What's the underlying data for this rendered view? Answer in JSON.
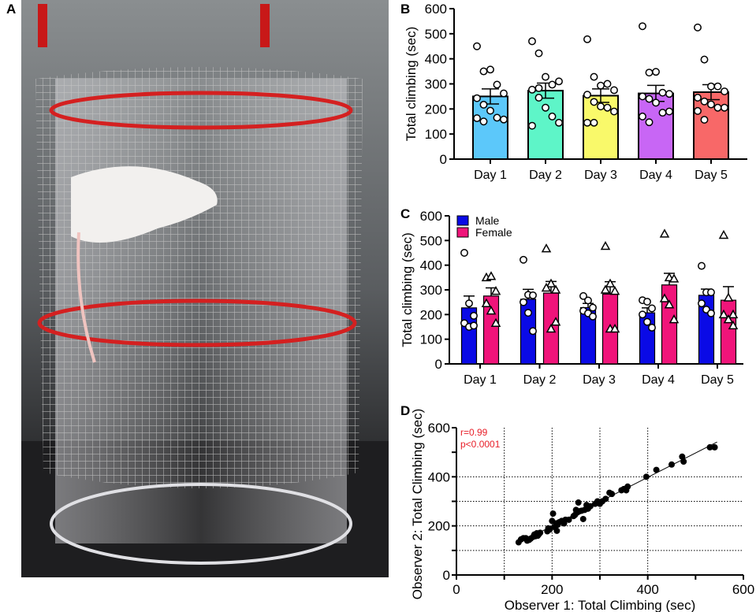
{
  "panels": {
    "a": "A",
    "b": "B",
    "c": "C",
    "d": "D"
  },
  "photo": {
    "description_icon": "rat-in-wire-mesh-cylinder-photo"
  },
  "chart_data": [
    {
      "id": "B",
      "type": "bar",
      "categories": [
        "Day 1",
        "Day 2",
        "Day 3",
        "Day 4",
        "Day 5"
      ],
      "ylabel": "Total climbing (sec)",
      "xlabel": "",
      "ylim": [
        0,
        600
      ],
      "yticks": [
        0,
        100,
        200,
        300,
        400,
        500,
        600
      ],
      "colors": [
        "#5cc8fa",
        "#5ef5c8",
        "#f9f96a",
        "#c866f5",
        "#f86868"
      ],
      "values": [
        250,
        273,
        253,
        262,
        267
      ],
      "sem": [
        30,
        30,
        27,
        32,
        30
      ],
      "points": [
        [
          450,
          350,
          357,
          297,
          262,
          243,
          217,
          193,
          165,
          158,
          163,
          150
        ],
        [
          470,
          422,
          328,
          297,
          310,
          277,
          245,
          205,
          170,
          145,
          133,
          283
        ],
        [
          478,
          328,
          293,
          300,
          275,
          257,
          228,
          210,
          205,
          190,
          145,
          145
        ],
        [
          530,
          345,
          348,
          265,
          260,
          250,
          240,
          225,
          185,
          190,
          170,
          147
        ],
        [
          525,
          397,
          290,
          290,
          270,
          245,
          230,
          218,
          205,
          205,
          192,
          157
        ]
      ]
    },
    {
      "id": "C",
      "type": "bar",
      "categories": [
        "Day 1",
        "Day 2",
        "Day 3",
        "Day 4",
        "Day 5"
      ],
      "ylabel": "Total climbing (sec)",
      "xlabel": "",
      "ylim": [
        0,
        600
      ],
      "yticks": [
        0,
        100,
        200,
        300,
        400,
        500,
        600
      ],
      "legend": "top-left",
      "series": [
        {
          "name": "Male",
          "color": "#0a0ae6",
          "marker": "circle",
          "values": [
            227,
            262,
            228,
            207,
            278
          ],
          "sem": [
            48,
            40,
            17,
            20,
            25
          ],
          "points": [
            [
              450,
              245,
              195,
              165,
              150,
              155
            ],
            [
              422,
              280,
              278,
              250,
              207,
              133
            ],
            [
              275,
              257,
              228,
              215,
              205,
              192
            ],
            [
              258,
              252,
              225,
              200,
              170,
              147
            ],
            [
              397,
              290,
              290,
              245,
              220,
              205
            ]
          ]
        },
        {
          "name": "Female",
          "color": "#f0147a",
          "marker": "triangle",
          "values": [
            275,
            287,
            283,
            320,
            258
          ],
          "sem": [
            33,
            47,
            50,
            47,
            55
          ],
          "points": [
            [
              350,
              355,
              295,
              245,
              215,
              165
            ],
            [
              467,
              325,
              300,
              308,
              142,
              170
            ],
            [
              477,
              325,
              295,
              300,
              142,
              142
            ],
            [
              527,
              350,
              345,
              265,
              240,
              180
            ],
            [
              522,
              268,
              200,
              200,
              180,
              155
            ]
          ]
        }
      ]
    },
    {
      "id": "D",
      "type": "scatter",
      "xlabel": "Observer 1: Total Climbing (sec)",
      "ylabel": "Observer 2: Total Climbing (sec)",
      "xlim": [
        0,
        600
      ],
      "ylim": [
        0,
        600
      ],
      "xticks": [
        0,
        200,
        400,
        600
      ],
      "yticks": [
        0,
        200,
        400,
        600
      ],
      "grid": true,
      "annotation": {
        "r": "r=0.99",
        "p": "p<0.0001",
        "color": "#e8202a"
      },
      "regression_line": true,
      "points": [
        [
          130,
          133
        ],
        [
          135,
          145
        ],
        [
          140,
          150
        ],
        [
          145,
          150
        ],
        [
          148,
          140
        ],
        [
          152,
          143
        ],
        [
          155,
          148
        ],
        [
          160,
          155
        ],
        [
          163,
          165
        ],
        [
          165,
          158
        ],
        [
          168,
          170
        ],
        [
          170,
          160
        ],
        [
          172,
          165
        ],
        [
          175,
          172
        ],
        [
          190,
          178
        ],
        [
          192,
          190
        ],
        [
          195,
          185
        ],
        [
          200,
          220
        ],
        [
          202,
          250
        ],
        [
          205,
          195
        ],
        [
          208,
          210
        ],
        [
          210,
          180
        ],
        [
          212,
          205
        ],
        [
          215,
          215
        ],
        [
          220,
          220
        ],
        [
          225,
          210
        ],
        [
          228,
          225
        ],
        [
          235,
          225
        ],
        [
          245,
          240
        ],
        [
          248,
          245
        ],
        [
          250,
          265
        ],
        [
          253,
          255
        ],
        [
          255,
          295
        ],
        [
          258,
          260
        ],
        [
          262,
          262
        ],
        [
          265,
          228
        ],
        [
          268,
          265
        ],
        [
          272,
          285
        ],
        [
          275,
          270
        ],
        [
          280,
          280
        ],
        [
          290,
          290
        ],
        [
          295,
          300
        ],
        [
          298,
          295
        ],
        [
          300,
          290
        ],
        [
          305,
          300
        ],
        [
          312,
          310
        ],
        [
          320,
          335
        ],
        [
          325,
          330
        ],
        [
          345,
          345
        ],
        [
          350,
          350
        ],
        [
          355,
          345
        ],
        [
          358,
          360
        ],
        [
          397,
          400
        ],
        [
          418,
          428
        ],
        [
          450,
          450
        ],
        [
          472,
          482
        ],
        [
          475,
          462
        ],
        [
          530,
          520
        ],
        [
          540,
          520
        ]
      ]
    }
  ]
}
